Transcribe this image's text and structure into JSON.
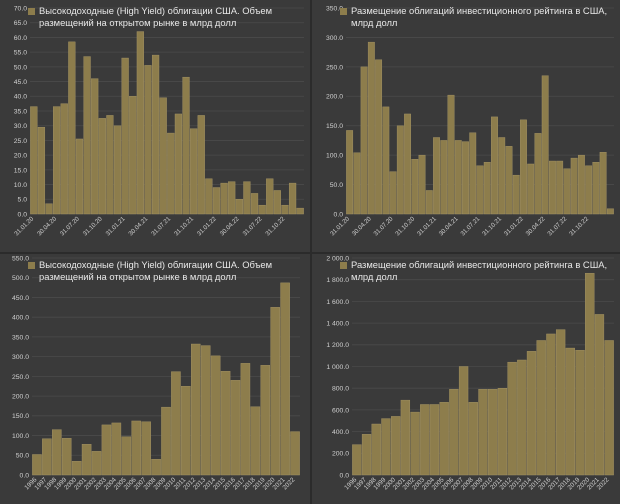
{
  "colors": {
    "bar": "#8d7d4c",
    "bar_edge": "#a99868",
    "grid": "#4a4a4a",
    "tick": "#d0d0d0",
    "panel_bg": "#3a3a3a"
  },
  "chart_data": [
    {
      "type": "bar",
      "legend": "Высокодоходные (High Yield) облигации США. Объем размещений на открытом рынке в млрд долл",
      "ylim": [
        0,
        70
      ],
      "yticks": [
        "0.0",
        "5.0",
        "10.0",
        "15.0",
        "20.0",
        "25.0",
        "30.0",
        "35.0",
        "40.0",
        "45.0",
        "50.0",
        "55.0",
        "60.0",
        "65.0",
        "70.0"
      ],
      "ytick_values": [
        0,
        5,
        10,
        15,
        20,
        25,
        30,
        35,
        40,
        45,
        50,
        55,
        60,
        65,
        70
      ],
      "grid": true,
      "legend_position": "top-left",
      "x_tick_labels": [
        {
          "index": 0,
          "label": "31.01.20"
        },
        {
          "index": 3,
          "label": "30.04.20"
        },
        {
          "index": 6,
          "label": "31.07.20"
        },
        {
          "index": 9,
          "label": "31.10.20"
        },
        {
          "index": 12,
          "label": "31.01.21"
        },
        {
          "index": 15,
          "label": "30.04.21"
        },
        {
          "index": 18,
          "label": "31.07.21"
        },
        {
          "index": 21,
          "label": "31.10.21"
        },
        {
          "index": 24,
          "label": "31.01.22"
        },
        {
          "index": 27,
          "label": "30.04.22"
        },
        {
          "index": 30,
          "label": "31.07.22"
        },
        {
          "index": 33,
          "label": "31.10.22"
        }
      ],
      "values": [
        36.5,
        29.5,
        3.5,
        36.5,
        37.5,
        58.5,
        25.5,
        53.5,
        46,
        32.5,
        33.5,
        30,
        53,
        40,
        62,
        50.5,
        54,
        39.5,
        27.5,
        34,
        46.5,
        29,
        33.5,
        12,
        9,
        10.5,
        11,
        5,
        11,
        7,
        3,
        12,
        8,
        3,
        10.5,
        2
      ]
    },
    {
      "type": "bar",
      "legend": "Размещение облигаций инвестиционного рейтинга в США, млрд долл",
      "ylim": [
        0,
        350
      ],
      "yticks": [
        "0.0",
        "50.0",
        "100.0",
        "150.0",
        "200.0",
        "250.0",
        "300.0",
        "350.0"
      ],
      "ytick_values": [
        0,
        50,
        100,
        150,
        200,
        250,
        300,
        350
      ],
      "grid": true,
      "legend_position": "top-left",
      "x_tick_labels": [
        {
          "index": 0,
          "label": "31.01.20"
        },
        {
          "index": 3,
          "label": "30.04.20"
        },
        {
          "index": 6,
          "label": "31.07.20"
        },
        {
          "index": 9,
          "label": "31.10.20"
        },
        {
          "index": 12,
          "label": "31.01.21"
        },
        {
          "index": 15,
          "label": "30.04.21"
        },
        {
          "index": 18,
          "label": "31.07.21"
        },
        {
          "index": 21,
          "label": "31.10.21"
        },
        {
          "index": 24,
          "label": "31.01.22"
        },
        {
          "index": 27,
          "label": "30.04.22"
        },
        {
          "index": 30,
          "label": "31.07.22"
        },
        {
          "index": 33,
          "label": "31.10.22"
        }
      ],
      "values": [
        142,
        104,
        250,
        292,
        262,
        182,
        72,
        150,
        170,
        93,
        100,
        40,
        130,
        125,
        202,
        125,
        123,
        138,
        82,
        88,
        165,
        130,
        115,
        66,
        160,
        85,
        137,
        235,
        90,
        90,
        77,
        95,
        100,
        82,
        88,
        105,
        9
      ]
    },
    {
      "type": "bar",
      "legend": "Высокодоходные (High Yield) облигации США. Объем размещений на открытом рынке в млрд долл",
      "categories": [
        "1996",
        "1997",
        "1998",
        "1999",
        "2000",
        "2001",
        "2002",
        "2003",
        "2004",
        "2005",
        "2006",
        "2007",
        "2008",
        "2009",
        "2010",
        "2011",
        "2012",
        "2013",
        "2014",
        "2015",
        "2016",
        "2017",
        "2018",
        "2019",
        "2020",
        "2021",
        "2022"
      ],
      "values": [
        52,
        92,
        115,
        93,
        35,
        78,
        60,
        127,
        132,
        97,
        137,
        135,
        40,
        172,
        262,
        225,
        332,
        328,
        302,
        263,
        240,
        283,
        173,
        278,
        425,
        487,
        110
      ],
      "ylim": [
        0,
        550
      ],
      "yticks": [
        "0.0",
        "50.0",
        "100.0",
        "150.0",
        "200.0",
        "250.0",
        "300.0",
        "350.0",
        "400.0",
        "450.0",
        "500.0",
        "550.0"
      ],
      "ytick_values": [
        0,
        50,
        100,
        150,
        200,
        250,
        300,
        350,
        400,
        450,
        500,
        550
      ],
      "grid": true,
      "legend_position": "top-left"
    },
    {
      "type": "bar",
      "legend": "Размещение облигаций инвестиционного рейтинга в США, млрд долл",
      "categories": [
        "1996",
        "1997",
        "1998",
        "1999",
        "2000",
        "2001",
        "2002",
        "2003",
        "2004",
        "2005",
        "2006",
        "2007",
        "2008",
        "2009",
        "2010",
        "2011",
        "2012",
        "2013",
        "2014",
        "2015",
        "2016",
        "2017",
        "2018",
        "2019",
        "2020",
        "2021",
        "2022"
      ],
      "values": [
        280,
        375,
        470,
        520,
        540,
        690,
        580,
        650,
        650,
        670,
        790,
        1000,
        670,
        790,
        790,
        800,
        1040,
        1060,
        1140,
        1240,
        1300,
        1340,
        1170,
        1150,
        1860,
        1480,
        1240
      ],
      "ylim": [
        0,
        2000
      ],
      "yticks": [
        "0.0",
        "200.0",
        "400.0",
        "600.0",
        "800.0",
        "1 000.0",
        "1 200.0",
        "1 400.0",
        "1 600.0",
        "1 800.0",
        "2 000.0"
      ],
      "ytick_values": [
        0,
        200,
        400,
        600,
        800,
        1000,
        1200,
        1400,
        1600,
        1800,
        2000
      ],
      "grid": true,
      "legend_position": "top-left"
    }
  ]
}
